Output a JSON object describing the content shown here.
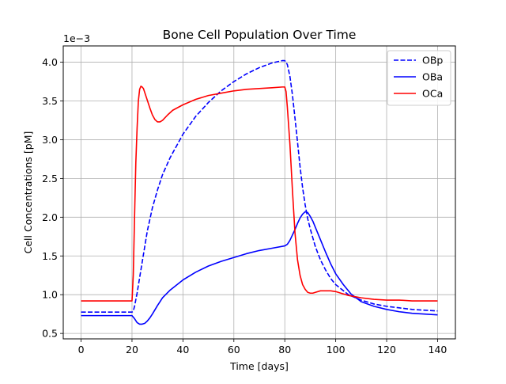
{
  "chart_data": {
    "type": "line",
    "title": "Bone Cell Population Over Time",
    "xlabel": "Time [days]",
    "ylabel": "Cell Concentrations [pM]",
    "y_offset_text": "1e−3",
    "xlim": [
      -7,
      147
    ],
    "ylim": [
      0.00043,
      0.00421
    ],
    "x_ticks": [
      0,
      20,
      40,
      60,
      80,
      100,
      120,
      140
    ],
    "x_tick_labels": [
      "0",
      "20",
      "40",
      "60",
      "80",
      "100",
      "120",
      "140"
    ],
    "y_ticks": [
      0.0005,
      0.001,
      0.0015,
      0.002,
      0.0025,
      0.003,
      0.0035,
      0.004
    ],
    "y_tick_labels": [
      "0.5",
      "1.0",
      "1.5",
      "2.0",
      "2.5",
      "3.0",
      "3.5",
      "4.0"
    ],
    "grid": true,
    "legend_position": "top-right",
    "series": [
      {
        "name": "OBp",
        "color": "#0000ff",
        "style": "dashed",
        "x": [
          0,
          20,
          20.5,
          21,
          22,
          23,
          24,
          25,
          26,
          28,
          30,
          32,
          35,
          40,
          45,
          50,
          55,
          60,
          65,
          70,
          75,
          79,
          80,
          81,
          82,
          83,
          84,
          85,
          86,
          87,
          88,
          89,
          90,
          92,
          94,
          96,
          98,
          100,
          105,
          110,
          115,
          120,
          125,
          130,
          135,
          140
        ],
        "y": [
          0.000775,
          0.000775,
          0.00079,
          0.00085,
          0.00102,
          0.00122,
          0.00142,
          0.00162,
          0.00182,
          0.00212,
          0.00235,
          0.00255,
          0.00277,
          0.00307,
          0.0033,
          0.00348,
          0.00363,
          0.00375,
          0.00385,
          0.00393,
          0.00399,
          0.00402,
          0.00402,
          0.00397,
          0.00382,
          0.00358,
          0.00328,
          0.00297,
          0.00265,
          0.00238,
          0.00216,
          0.00198,
          0.00185,
          0.00162,
          0.00145,
          0.00132,
          0.00121,
          0.00113,
          0.001,
          0.00093,
          0.00088,
          0.00085,
          0.00083,
          0.00081,
          0.0008,
          0.00079
        ]
      },
      {
        "name": "OBa",
        "color": "#0000ff",
        "style": "solid",
        "x": [
          0,
          20,
          21,
          22,
          23,
          24,
          25,
          26,
          27,
          28,
          30,
          32,
          35,
          40,
          45,
          50,
          55,
          60,
          65,
          70,
          75,
          80,
          81,
          82,
          83,
          84,
          85,
          86,
          87,
          88,
          89,
          90,
          91,
          92,
          94,
          96,
          98,
          100,
          103,
          106,
          110,
          115,
          120,
          125,
          130,
          135,
          140
        ],
        "y": [
          0.00073,
          0.00073,
          0.00069,
          0.00064,
          0.00062,
          0.00062,
          0.00063,
          0.00066,
          0.0007,
          0.00075,
          0.00086,
          0.00096,
          0.00106,
          0.00119,
          0.00129,
          0.00137,
          0.00143,
          0.00148,
          0.00153,
          0.00157,
          0.0016,
          0.00163,
          0.00165,
          0.0017,
          0.00177,
          0.00184,
          0.00192,
          0.00199,
          0.00204,
          0.00207,
          0.00206,
          0.00201,
          0.00195,
          0.00187,
          0.00171,
          0.00155,
          0.0014,
          0.00127,
          0.00113,
          0.00101,
          0.00091,
          0.00085,
          0.00081,
          0.00078,
          0.00076,
          0.00075,
          0.00074
        ]
      },
      {
        "name": "OCa",
        "color": "#ff0000",
        "style": "solid",
        "x": [
          0,
          20,
          20.5,
          21,
          21.5,
          22,
          22.5,
          23,
          23.5,
          24,
          24.5,
          25,
          26,
          27,
          28,
          29,
          30,
          31,
          32,
          34,
          36,
          40,
          45,
          50,
          55,
          60,
          65,
          70,
          75,
          79,
          80,
          80.5,
          81,
          82,
          83,
          84,
          85,
          86,
          87,
          88,
          89,
          90,
          91,
          92,
          94,
          96,
          98,
          100,
          102,
          105,
          110,
          115,
          120,
          125,
          130,
          135,
          140
        ],
        "y": [
          0.00092,
          0.00092,
          0.00125,
          0.002,
          0.0027,
          0.00315,
          0.0035,
          0.00365,
          0.00369,
          0.00368,
          0.00366,
          0.00361,
          0.00351,
          0.00341,
          0.00332,
          0.00326,
          0.00323,
          0.00323,
          0.00325,
          0.00332,
          0.00338,
          0.00345,
          0.00352,
          0.00357,
          0.0036,
          0.00363,
          0.00365,
          0.00366,
          0.00367,
          0.00368,
          0.00368,
          0.00362,
          0.00342,
          0.00295,
          0.00235,
          0.0018,
          0.00145,
          0.00125,
          0.00113,
          0.00107,
          0.00103,
          0.00102,
          0.00102,
          0.00103,
          0.00105,
          0.00105,
          0.00105,
          0.00104,
          0.00102,
          0.00099,
          0.00096,
          0.00094,
          0.00093,
          0.00093,
          0.00092,
          0.00092,
          0.00092
        ]
      }
    ]
  }
}
